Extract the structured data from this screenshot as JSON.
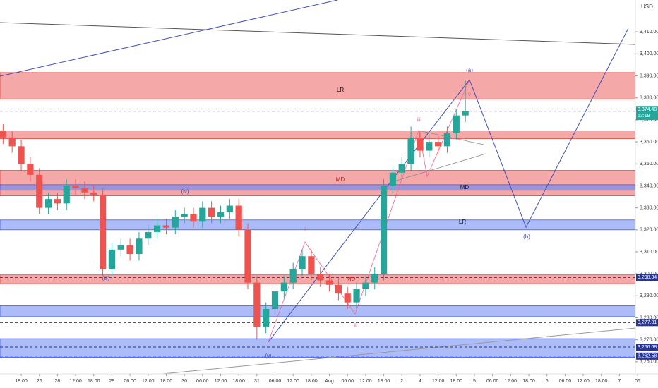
{
  "chart_data": {
    "type": "candlestick",
    "currency": "USD",
    "up_color": "#26a69a",
    "down_color": "#ef5350",
    "xlim": [
      -0.17,
      35.27
    ],
    "xticks": [
      {
        "value": 1,
        "label": "18:00"
      },
      {
        "value": 2,
        "label": "26"
      },
      {
        "value": 3,
        "label": "28"
      },
      {
        "value": 4,
        "label": "12:00"
      },
      {
        "value": 5,
        "label": "18:00"
      },
      {
        "value": 6,
        "label": "29"
      },
      {
        "value": 7,
        "label": "06:00"
      },
      {
        "value": 8,
        "label": "12:00"
      },
      {
        "value": 9,
        "label": "18:00"
      },
      {
        "value": 10,
        "label": "30"
      },
      {
        "value": 11,
        "label": "06:00"
      },
      {
        "value": 12,
        "label": "12:00"
      },
      {
        "value": 13,
        "label": "18:00"
      },
      {
        "value": 14,
        "label": "31"
      },
      {
        "value": 15,
        "label": "06:00"
      },
      {
        "value": 16,
        "label": "12:00"
      },
      {
        "value": 17,
        "label": "18:00"
      },
      {
        "value": 18,
        "label": "Aug"
      },
      {
        "value": 19,
        "label": "06:00"
      },
      {
        "value": 20,
        "label": "12:00"
      },
      {
        "value": 21,
        "label": "18:00"
      },
      {
        "value": 22,
        "label": "2"
      },
      {
        "value": 23,
        "label": "4"
      },
      {
        "value": 24,
        "label": "12:00"
      },
      {
        "value": 25,
        "label": "18:00"
      },
      {
        "value": 26,
        "label": "5"
      },
      {
        "value": 27,
        "label": "06:00"
      },
      {
        "value": 28,
        "label": "12:00"
      },
      {
        "value": 29,
        "label": "18:00"
      },
      {
        "value": 30,
        "label": "6"
      },
      {
        "value": 31,
        "label": "06:00"
      },
      {
        "value": 32,
        "label": "12:00"
      },
      {
        "value": 33,
        "label": "18:00"
      },
      {
        "value": 34,
        "label": "7"
      },
      {
        "value": 35,
        "label": "06"
      }
    ],
    "ylim": [
      3254.5,
      3424.5
    ],
    "yticks": [
      {
        "value": 3260,
        "label": "3,260.00"
      },
      {
        "value": 3270,
        "label": "3,270.00"
      },
      {
        "value": 3280,
        "label": "3,280.00"
      },
      {
        "value": 3290,
        "label": "3,290.00"
      },
      {
        "value": 3300,
        "label": "3,300.00"
      },
      {
        "value": 3310,
        "label": "3,310.00"
      },
      {
        "value": 3320,
        "label": "3,320.00"
      },
      {
        "value": 3330,
        "label": "3,330.00"
      },
      {
        "value": 3340,
        "label": "3,340.00"
      },
      {
        "value": 3350,
        "label": "3,350.00"
      },
      {
        "value": 3360,
        "label": "3,360.00"
      },
      {
        "value": 3370,
        "label": "3,370.00"
      },
      {
        "value": 3380,
        "label": "3,380.00"
      },
      {
        "value": 3390,
        "label": "3,390.00"
      },
      {
        "value": 3400,
        "label": "3,400.00"
      },
      {
        "value": 3410,
        "label": "3,410.00"
      }
    ],
    "x": [
      0,
      0.5,
      1,
      1.5,
      2,
      2.5,
      3,
      3.5,
      4,
      4.5,
      5,
      5.5,
      6,
      6.5,
      7,
      7.5,
      8,
      8.5,
      9,
      9.5,
      10,
      10.5,
      11,
      11.5,
      12,
      12.5,
      13,
      13.5,
      14,
      14.5,
      15,
      15.5,
      16,
      16.5,
      17,
      17.5,
      18,
      18.5,
      19,
      19.5,
      20,
      20.5,
      21,
      21.5,
      22,
      22.5,
      23,
      23.5,
      24,
      24.5,
      25,
      25.5
    ],
    "open": [
      3365,
      3362,
      3358,
      3350,
      3345,
      3330,
      3334,
      3332,
      3340,
      3339,
      3337,
      3336,
      3302,
      3311,
      3313,
      3309,
      3316,
      3319,
      3322,
      3321,
      3326,
      3327,
      3324,
      3330,
      3326,
      3328,
      3331,
      3320,
      3296,
      3276,
      3284,
      3292,
      3296,
      3302,
      3308,
      3300,
      3297,
      3295,
      3291,
      3287,
      3293,
      3296,
      3300,
      3340,
      3346,
      3350,
      3362,
      3356,
      3360,
      3358,
      3364,
      3372
    ],
    "high": [
      3368,
      3365,
      3361,
      3353,
      3348,
      3337,
      3337,
      3343,
      3343,
      3342,
      3340,
      3339,
      3314,
      3316,
      3316,
      3319,
      3322,
      3325,
      3325,
      3329,
      3330,
      3330,
      3333,
      3333,
      3331,
      3334,
      3334,
      3323,
      3299,
      3287,
      3295,
      3299,
      3305,
      3311,
      3311,
      3303,
      3300,
      3298,
      3294,
      3296,
      3299,
      3303,
      3343,
      3349,
      3353,
      3367,
      3365,
      3363,
      3363,
      3367,
      3375,
      3388
    ],
    "low": [
      3359,
      3355,
      3347,
      3342,
      3327,
      3327,
      3329,
      3329,
      3336,
      3334,
      3333,
      3299,
      3299,
      3308,
      3306,
      3306,
      3313,
      3316,
      3318,
      3318,
      3323,
      3321,
      3321,
      3323,
      3323,
      3325,
      3317,
      3293,
      3270,
      3273,
      3281,
      3289,
      3293,
      3299,
      3297,
      3294,
      3292,
      3288,
      3284,
      3284,
      3290,
      3293,
      3297,
      3337,
      3343,
      3347,
      3353,
      3353,
      3355,
      3355,
      3361,
      3369
    ],
    "close": [
      3362,
      3358,
      3350,
      3345,
      3330,
      3334,
      3332,
      3340,
      3339,
      3337,
      3336,
      3302,
      3311,
      3313,
      3309,
      3316,
      3319,
      3322,
      3321,
      3326,
      3327,
      3324,
      3330,
      3326,
      3328,
      3331,
      3320,
      3296,
      3276,
      3284,
      3292,
      3296,
      3302,
      3308,
      3300,
      3297,
      3295,
      3291,
      3287,
      3293,
      3296,
      3300,
      3340,
      3346,
      3350,
      3362,
      3356,
      3360,
      3358,
      3364,
      3372,
      3374
    ],
    "zones": [
      {
        "top": 3391.5,
        "bottom": 3379.5,
        "color": "#f28b8b"
      },
      {
        "top": 3365,
        "bottom": 3361.5,
        "color": "#f28b8b"
      },
      {
        "top": 3347,
        "bottom": 3335.5,
        "color": "#f28b8b"
      },
      {
        "top": 3340.5,
        "bottom": 3338,
        "color": "#7f8fe8"
      },
      {
        "top": 3324.5,
        "bottom": 3320,
        "color": "#8fa6f5"
      },
      {
        "top": 3299.5,
        "bottom": 3295.5,
        "color": "#f28b8b"
      },
      {
        "top": 3285.5,
        "bottom": 3280.5,
        "color": "#8fa6f5"
      },
      {
        "top": 3270.5,
        "bottom": 3262,
        "color": "#8fa6f5"
      }
    ],
    "last_price": {
      "value": 3374.4,
      "label": "3,374.40",
      "countdown": "13:19"
    },
    "levels": [
      {
        "value": 3373.94,
        "label": "3,373.94",
        "color": "#283593"
      },
      {
        "value": 3298.34,
        "label": "3,298.34",
        "color": "#283593"
      },
      {
        "value": 3277.81,
        "label": "3,277.81",
        "color": "#283593"
      },
      {
        "value": 3266.68,
        "label": "3,266.68",
        "color": "#283593"
      },
      {
        "value": 3262.58,
        "label": "3,262.58",
        "color": "#283593"
      }
    ],
    "annotations": [
      "(a)",
      "(b)",
      "LR",
      "LR",
      "MD",
      "MD",
      "MD",
      "(iii)",
      "(iv)",
      "(v)",
      "i",
      "ii",
      "iii",
      "v"
    ]
  }
}
